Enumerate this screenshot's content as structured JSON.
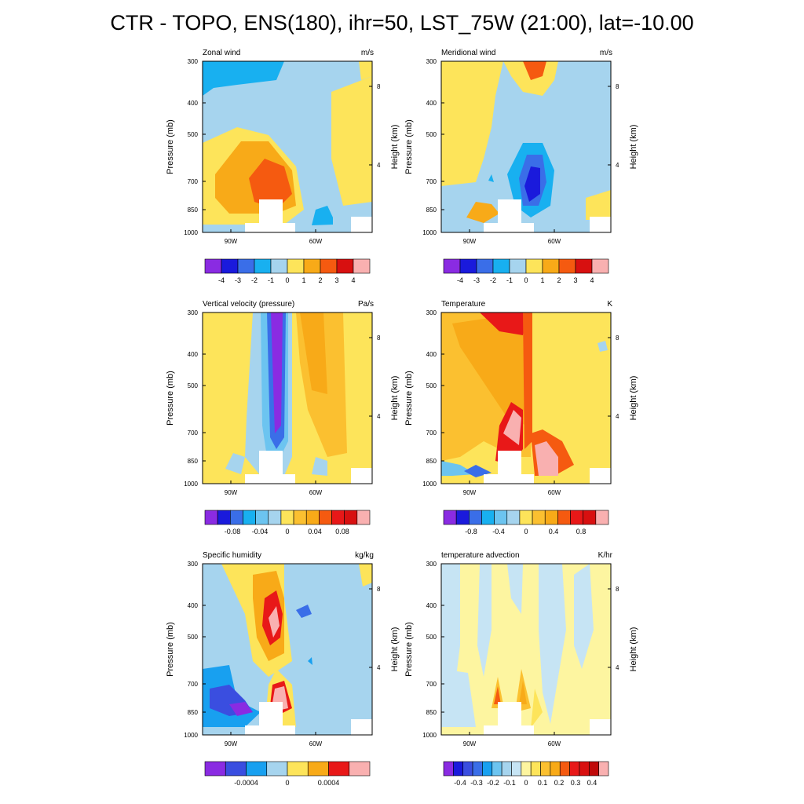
{
  "title": "CTR - TOPO, ENS(180), ihr=50, LST_75W (21:00), lat=-10.00",
  "axes": {
    "y_left_label": "Pressure (mb)",
    "y_right_label": "Height (km)",
    "pressure_ticks": [
      "300",
      "400",
      "500",
      "700",
      "850",
      "1000"
    ],
    "height_ticks": [
      "8",
      "4"
    ],
    "lon_ticks": [
      "90W",
      "60W"
    ]
  },
  "panels": [
    {
      "title": "Zonal wind",
      "units": "m/s",
      "colorbar": {
        "colors": [
          "#8a2be2",
          "#1a1adc",
          "#3a6ee8",
          "#18b0f0",
          "#a6d4ee",
          "#fde45a",
          "#f8aa18",
          "#f55a10",
          "#d81010",
          "#f9b0b0"
        ],
        "labels": [
          "-4",
          "-3",
          "-2",
          "-1",
          "0",
          "1",
          "2",
          "3",
          "4"
        ]
      }
    },
    {
      "title": "Meridional wind",
      "units": "m/s",
      "colorbar": {
        "colors": [
          "#8a2be2",
          "#1a1adc",
          "#3a6ee8",
          "#18b0f0",
          "#a6d4ee",
          "#fde45a",
          "#f8aa18",
          "#f55a10",
          "#d81010",
          "#f9b0b0"
        ],
        "labels": [
          "-4",
          "-3",
          "-2",
          "-1",
          "0",
          "1",
          "2",
          "3",
          "4"
        ]
      }
    },
    {
      "title": "Vertical velocity (pressure)",
      "units": "Pa/s",
      "colorbar": {
        "colors": [
          "#8a2be2",
          "#1a1adc",
          "#3a6ee8",
          "#18b0f0",
          "#6cc4f0",
          "#a6d4ee",
          "#fde45a",
          "#fbc030",
          "#f8aa18",
          "#f55a10",
          "#e81818",
          "#d81010",
          "#f9b0b0"
        ],
        "labels": [
          "",
          "-0.08",
          "",
          "-0.04",
          "",
          "0",
          "",
          "0.04",
          "",
          "0.08",
          ""
        ]
      }
    },
    {
      "title": "Temperature",
      "units": "K",
      "colorbar": {
        "colors": [
          "#8a2be2",
          "#1a1adc",
          "#3a6ee8",
          "#18b0f0",
          "#6cc4f0",
          "#a6d4ee",
          "#fde45a",
          "#fbc030",
          "#f8aa18",
          "#f55a10",
          "#e81818",
          "#d81010",
          "#f9b0b0"
        ],
        "labels": [
          "",
          "-0.8",
          "",
          "-0.4",
          "",
          "0",
          "",
          "0.4",
          "",
          "0.8",
          ""
        ]
      }
    },
    {
      "title": "Specific humidity",
      "units": "kg/kg",
      "colorbar": {
        "colors": [
          "#8a2be2",
          "#3a4ee0",
          "#18a0f0",
          "#a6d4ee",
          "#fde45a",
          "#f8aa18",
          "#e81818",
          "#f9b0b0"
        ],
        "labels": [
          "",
          "-0.0004",
          "",
          "0",
          "",
          "0.0004",
          ""
        ]
      }
    },
    {
      "title": "temperature advection",
      "units": "K/hr",
      "colorbar": {
        "colors": [
          "#8a2be2",
          "#1a1adc",
          "#3a4ee0",
          "#3a6ee8",
          "#18a0f0",
          "#6cc4f0",
          "#a6d4ee",
          "#c6e4f4",
          "#fdf5a0",
          "#fde45a",
          "#fbc030",
          "#f8aa18",
          "#f55a10",
          "#e81818",
          "#d81010",
          "#c00a0a",
          "#f9b0b0"
        ],
        "labels": [
          "-0.4",
          "-0.3",
          "-0.2",
          "-0.1",
          "0",
          "0.1",
          "0.2",
          "0.3",
          "0.4"
        ]
      }
    }
  ]
}
